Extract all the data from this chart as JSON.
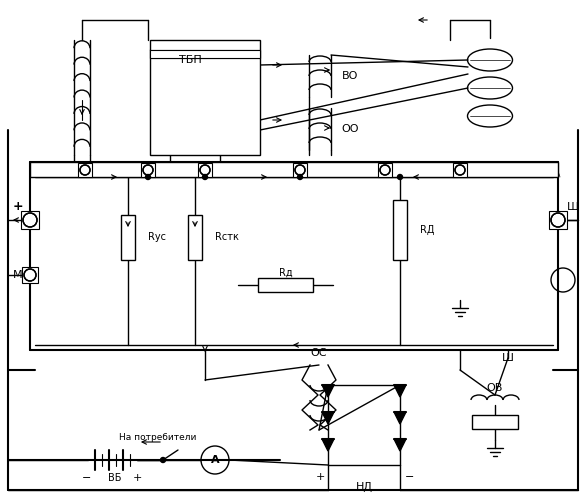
{
  "bg_color": "#ffffff",
  "line_color": "#000000",
  "labels": {
    "TBP": "ТБП",
    "VO": "ВО",
    "OO": "ОО",
    "Rus": "Rус",
    "Rstk": "Rстк",
    "Rd_small": "Rд",
    "Rd_big": "RД",
    "M": "М",
    "Sh_top": "Ш",
    "Sh_bot": "Ш",
    "OS": "ОС",
    "OV": "ОВ",
    "ND": "НД",
    "VB": "ВБ",
    "plus": "+",
    "minus": "−",
    "consumers": "На потребители",
    "A_label": "А"
  },
  "figsize": [
    5.85,
    5.0
  ],
  "dpi": 100
}
